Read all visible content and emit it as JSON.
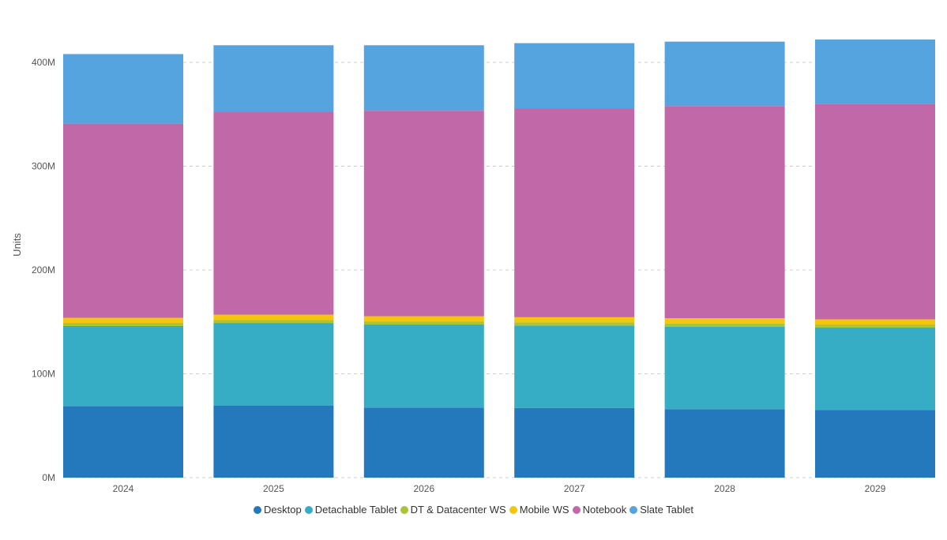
{
  "chart_data": {
    "type": "bar",
    "stacked": true,
    "title": "",
    "xlabel": "",
    "ylabel": "Units",
    "ylim": [
      0,
      420000000
    ],
    "yticks": [
      {
        "value": 0,
        "label": "0M"
      },
      {
        "value": 100000000,
        "label": "100M"
      },
      {
        "value": 200000000,
        "label": "200M"
      },
      {
        "value": 300000000,
        "label": "300M"
      },
      {
        "value": 400000000,
        "label": "400M"
      }
    ],
    "grid": true,
    "legend_position": "bottom",
    "categories": [
      "2024",
      "2025",
      "2026",
      "2027",
      "2028",
      "2029"
    ],
    "series": [
      {
        "name": "Desktop",
        "color": "#2479bd",
        "values": [
          69000000,
          69500000,
          67500000,
          67000000,
          66000000,
          65000000
        ]
      },
      {
        "name": "Detachable Tablet",
        "color": "#37adc5",
        "values": [
          77000000,
          79500000,
          80000000,
          79500000,
          79500000,
          79500000
        ]
      },
      {
        "name": "DT & Datacenter WS",
        "color": "#a8c53a",
        "values": [
          3000000,
          3000000,
          3000000,
          3000000,
          3000000,
          3000000
        ]
      },
      {
        "name": "Mobile WS",
        "color": "#f5c60e",
        "values": [
          5000000,
          5000000,
          5000000,
          5000000,
          5000000,
          5000000
        ]
      },
      {
        "name": "Notebook",
        "color": "#c169a8",
        "values": [
          187000000,
          195500000,
          198000000,
          201000000,
          204500000,
          207500000
        ]
      },
      {
        "name": "Slate Tablet",
        "color": "#55a4e0",
        "values": [
          67000000,
          64000000,
          63000000,
          63000000,
          62000000,
          62000000
        ]
      }
    ]
  }
}
